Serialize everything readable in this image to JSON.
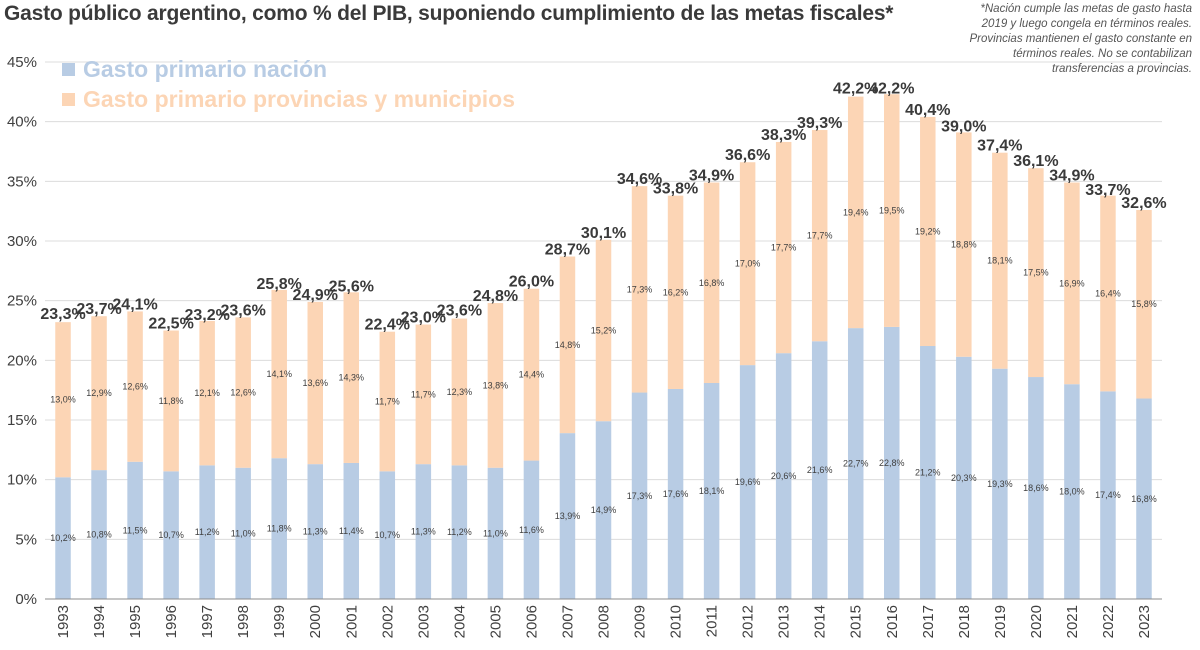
{
  "chart_data": {
    "type": "bar",
    "stacked": true,
    "title": "Gasto público argentino, como % del PIB, suponiendo cumplimiento de las metas fiscales*",
    "note_lines": [
      "*Nación cumple las metas de gasto hasta",
      "2019 y luego congela en términos reales.",
      "Provincias mantienen el gasto constante en",
      "términos reales.  No se contabilizan",
      "transferencias  a provincias."
    ],
    "categories": [
      "1993",
      "1994",
      "1995",
      "1996",
      "1997",
      "1998",
      "1999",
      "2000",
      "2001",
      "2002",
      "2003",
      "2004",
      "2005",
      "2006",
      "2007",
      "2008",
      "2009",
      "2010",
      "2011",
      "2012",
      "2013",
      "2014",
      "2015",
      "2016",
      "2017",
      "2018",
      "2019",
      "2020",
      "2021",
      "2022",
      "2023"
    ],
    "series": [
      {
        "name": "Gasto primario nación",
        "color": "#b8cce4",
        "values": [
          10.2,
          10.8,
          11.5,
          10.7,
          11.2,
          11.0,
          11.8,
          11.3,
          11.4,
          10.7,
          11.3,
          11.2,
          11.0,
          11.6,
          13.9,
          14.9,
          17.3,
          17.6,
          18.1,
          19.6,
          20.6,
          21.6,
          22.7,
          22.8,
          21.2,
          20.3,
          19.3,
          18.6,
          18.0,
          17.4,
          16.8
        ],
        "labels": [
          "10,2%",
          "10,8%",
          "11,5%",
          "10,7%",
          "11,2%",
          "11,0%",
          "11,8%",
          "11,3%",
          "11,4%",
          "10,7%",
          "11,3%",
          "11,2%",
          "11,0%",
          "11,6%",
          "13,9%",
          "14,9%",
          "17,3%",
          "17,6%",
          "18,1%",
          "19,6%",
          "20,6%",
          "21,6%",
          "22,7%",
          "22,8%",
          "21,2%",
          "20,3%",
          "19,3%",
          "18,6%",
          "18,0%",
          "17,4%",
          "16,8%"
        ]
      },
      {
        "name": "Gasto primario provincias y municipios",
        "color": "#fcd5b5",
        "values": [
          13.0,
          12.9,
          12.6,
          11.8,
          12.1,
          12.6,
          14.1,
          13.6,
          14.3,
          11.7,
          11.7,
          12.3,
          13.8,
          14.4,
          14.8,
          15.2,
          17.3,
          16.2,
          16.8,
          17.0,
          17.7,
          17.7,
          19.4,
          19.5,
          19.2,
          18.8,
          18.1,
          17.5,
          16.9,
          16.4,
          15.8
        ],
        "labels": [
          "13,0%",
          "12,9%",
          "12,6%",
          "11,8%",
          "12,1%",
          "12,6%",
          "14,1%",
          "13,6%",
          "14,3%",
          "11,7%",
          "11,7%",
          "12,3%",
          "13,8%",
          "14,4%",
          "14,8%",
          "15,2%",
          "17,3%",
          "16,2%",
          "16,8%",
          "17,0%",
          "17,7%",
          "17,7%",
          "19,4%",
          "19,5%",
          "19,2%",
          "18,8%",
          "18,1%",
          "17,5%",
          "16,9%",
          "16,4%",
          "15,8%"
        ]
      }
    ],
    "totals": [
      23.3,
      23.7,
      24.1,
      22.5,
      23.2,
      23.6,
      25.8,
      24.9,
      25.6,
      22.4,
      23.0,
      23.6,
      24.8,
      26.0,
      28.7,
      30.1,
      34.6,
      33.8,
      34.9,
      36.6,
      38.3,
      39.3,
      42.2,
      42.2,
      40.4,
      39.0,
      37.4,
      36.1,
      34.9,
      33.7,
      32.6
    ],
    "total_labels": [
      "23,3%",
      "23,7%",
      "24,1%",
      "22,5%",
      "23,2%",
      "23,6%",
      "25,8%",
      "24,9%",
      "25,6%",
      "22,4%",
      "23,0%",
      "23,6%",
      "24,8%",
      "26,0%",
      "28,7%",
      "30,1%",
      "34,6%",
      "33,8%",
      "34,9%",
      "36,6%",
      "38,3%",
      "39,3%",
      "42,2%",
      "42,2%",
      "40,4%",
      "39,0%",
      "37,4%",
      "36,1%",
      "34,9%",
      "33,7%",
      "32,6%"
    ],
    "ylim": [
      0,
      45
    ],
    "yticks": [
      0,
      5,
      10,
      15,
      20,
      25,
      30,
      35,
      40,
      45
    ],
    "ytick_labels": [
      "0%",
      "5%",
      "10%",
      "15%",
      "20%",
      "25%",
      "30%",
      "35%",
      "40%",
      "45%"
    ],
    "grid": "horizontal",
    "legend_position": "top-left"
  }
}
